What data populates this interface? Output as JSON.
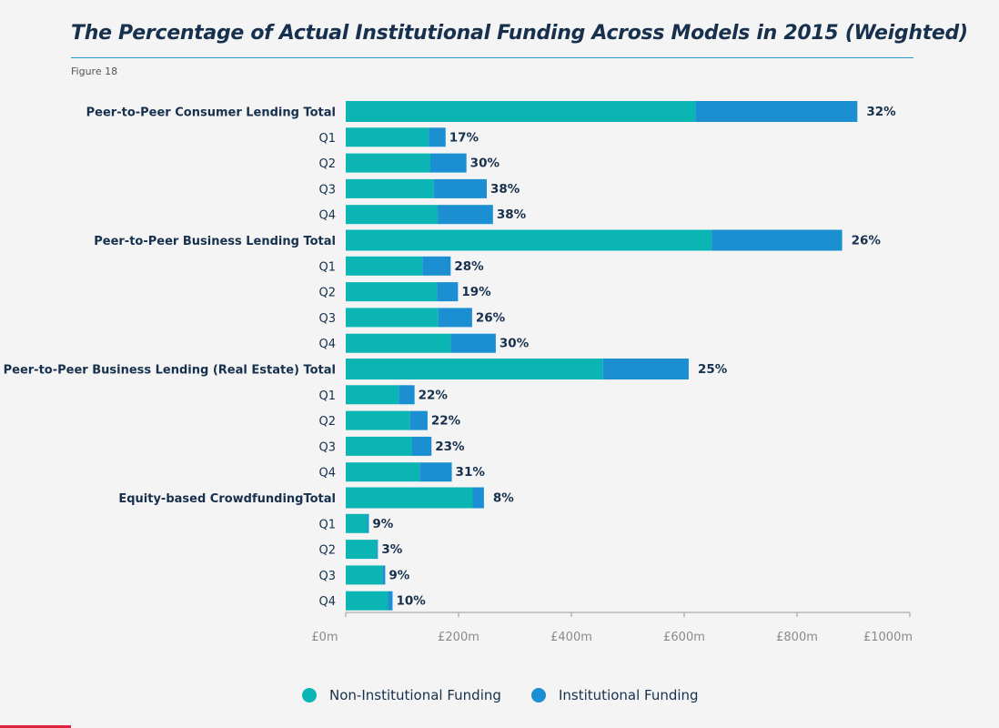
{
  "title": "The Percentage of Actual Institutional Funding Across Models in 2015 (Weighted)",
  "figure_label": "Figure 18",
  "colors": {
    "non_institutional": "#0bb5b3",
    "institutional": "#1b8fd2",
    "text": "#16304d",
    "axis": "#9a9a9a"
  },
  "chart_data": {
    "type": "bar",
    "orientation": "horizontal",
    "stacked": true,
    "categories": [
      "Peer-to-Peer Consumer Lending Total",
      "Q1",
      "Q2",
      "Q3",
      "Q4",
      "Peer-to-Peer Business Lending Total",
      "Q1",
      "Q2",
      "Q3",
      "Q4",
      "Peer-to-Peer Business Lending (Real Estate) Total",
      "Q1",
      "Q2",
      "Q3",
      "Q4",
      "Equity-based CrowdfundingTotal",
      "Q1",
      "Q2",
      "Q3",
      "Q4"
    ],
    "is_total": [
      true,
      false,
      false,
      false,
      false,
      true,
      false,
      false,
      false,
      false,
      true,
      false,
      false,
      false,
      false,
      true,
      false,
      false,
      false,
      false
    ],
    "series": [
      {
        "name": "Non-Institutional Funding",
        "values": [
          620,
          147,
          150,
          156,
          163,
          649,
          136,
          162,
          164,
          186,
          456,
          94,
          114,
          117,
          131,
          225,
          38,
          55,
          65,
          75
        ]
      },
      {
        "name": "Institutional Funding",
        "values": [
          287,
          30,
          64,
          94,
          98,
          231,
          50,
          37,
          60,
          80,
          152,
          28,
          31,
          35,
          57,
          20,
          3,
          2,
          5,
          8
        ]
      }
    ],
    "data_labels": [
      "32%",
      "17%",
      "30%",
      "38%",
      "38%",
      "26%",
      "28%",
      "19%",
      "26%",
      "30%",
      "25%",
      "22%",
      "22%",
      "23%",
      "31%",
      "8%",
      "9%",
      "3%",
      "9%",
      "10%"
    ],
    "x_ticks": [
      0,
      200,
      400,
      600,
      800,
      1000
    ],
    "x_tick_labels": [
      "£0m",
      "£200m",
      "£400m",
      "£600m",
      "£800m",
      "£1000m"
    ],
    "xlim": [
      0,
      1000
    ],
    "legend_position": "bottom-center",
    "grid": false
  },
  "legend": {
    "items": [
      "Non-Institutional Funding",
      "Institutional Funding"
    ]
  }
}
